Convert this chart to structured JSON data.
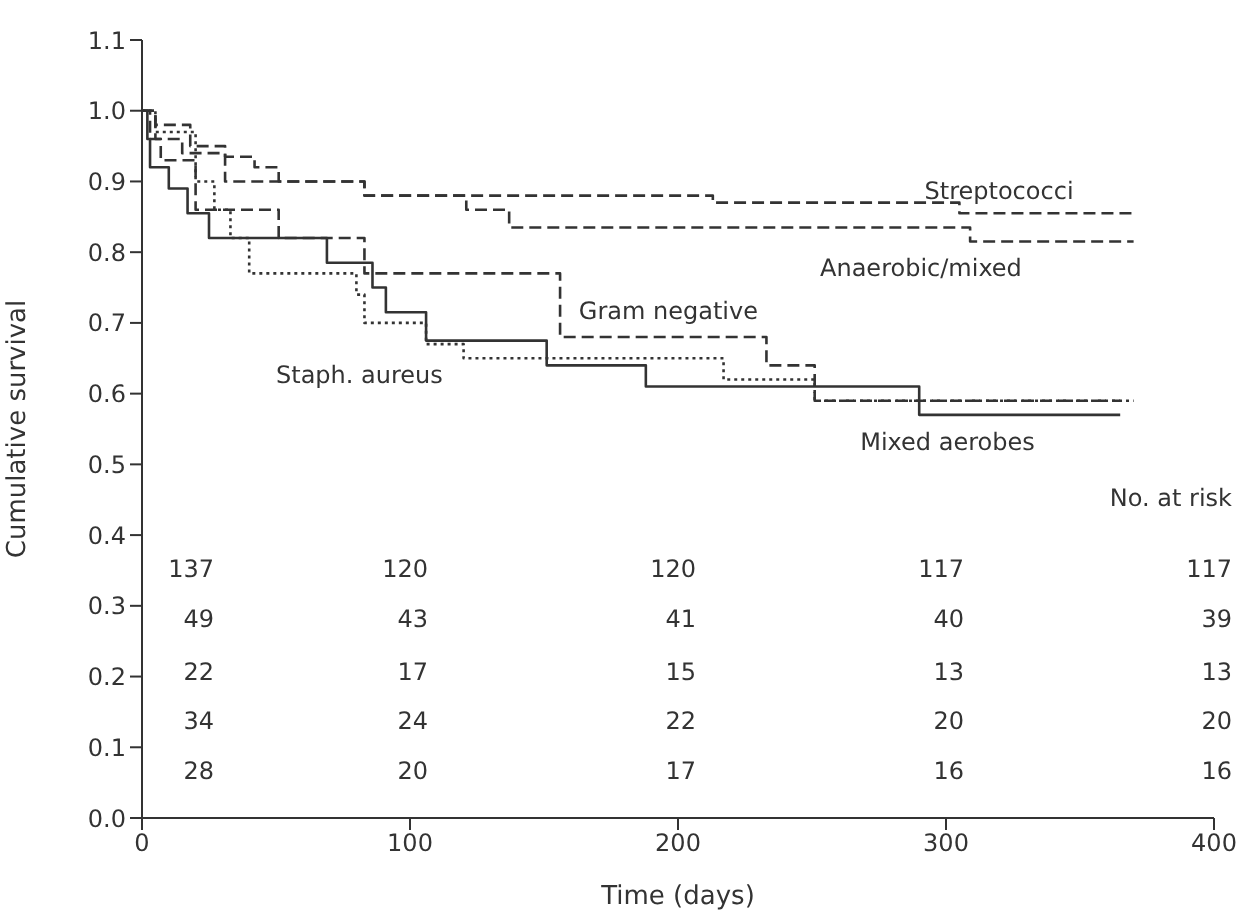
{
  "chart_data": {
    "type": "step",
    "xlabel": "Time (days)",
    "ylabel": "Cumulative survival",
    "xlim": [
      0,
      400
    ],
    "xticks": [
      0,
      100,
      200,
      300,
      400
    ],
    "ylim": [
      0,
      1.1
    ],
    "yticks": [
      {
        "value": 0,
        "label": "0.0"
      },
      0.1,
      0.2,
      0.3,
      0.4,
      0.5,
      0.6,
      0.7,
      0.8,
      0.9,
      {
        "value": 1,
        "label": "1.0"
      },
      1.1
    ],
    "marker": "none",
    "series": [
      {
        "name": "Streptococci",
        "color": "#333333",
        "line_style": "dashed",
        "x": [
          0,
          5,
          18,
          31,
          42,
          51,
          83,
          213,
          305,
          370
        ],
        "values": [
          1,
          0.98,
          0.95,
          0.935,
          0.92,
          0.9,
          0.88,
          0.87,
          0.855,
          0.855
        ]
      },
      {
        "name": "Anaerobic/mixed",
        "color": "#333333",
        "line_style": "dashed",
        "x": [
          0,
          5,
          15,
          31,
          83,
          121,
          137,
          309,
          370
        ],
        "values": [
          1,
          0.96,
          0.94,
          0.9,
          0.88,
          0.86,
          0.835,
          0.815,
          0.815
        ]
      },
      {
        "name": "Gram negative",
        "color": "#333333",
        "line_style": "dashed",
        "x": [
          0,
          3,
          7,
          20,
          51,
          83,
          156,
          233,
          251,
          365
        ],
        "values": [
          1,
          0.96,
          0.93,
          0.86,
          0.82,
          0.77,
          0.68,
          0.64,
          0.59,
          0.59
        ]
      },
      {
        "name": "Staph. aureus",
        "color": "#333333",
        "line_style": "dotted",
        "x": [
          0,
          5,
          20,
          27,
          33,
          40,
          80,
          83,
          106,
          120,
          217,
          251,
          370
        ],
        "values": [
          1,
          0.97,
          0.9,
          0.86,
          0.82,
          0.77,
          0.74,
          0.7,
          0.67,
          0.65,
          0.62,
          0.59,
          0.59
        ]
      },
      {
        "name": "Mixed aerobes",
        "color": "#333333",
        "line_style": "solid",
        "x": [
          0,
          2,
          3,
          10,
          17,
          25,
          69,
          86,
          91,
          106,
          151,
          188,
          290,
          365
        ],
        "values": [
          1,
          0.96,
          0.92,
          0.89,
          0.855,
          0.82,
          0.785,
          0.75,
          0.715,
          0.675,
          0.64,
          0.61,
          0.57,
          0.57
        ]
      }
    ],
    "annotations": [
      "No. at risk",
      "137",
      "120",
      "120",
      "117",
      "117",
      "49",
      "43",
      "41",
      "40",
      "39",
      "22",
      "17",
      "15",
      "13",
      "13",
      "34",
      "24",
      "22",
      "20",
      "20",
      "28",
      "20",
      "17",
      "16",
      "16"
    ]
  }
}
